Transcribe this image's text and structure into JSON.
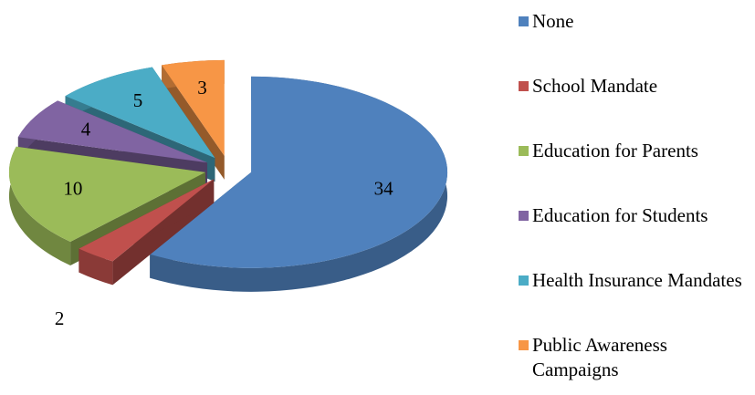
{
  "chart_data": {
    "type": "pie",
    "categories": [
      "None",
      "School Mandate",
      "Education for Parents",
      "Education for Students",
      "Health Insurance Mandates",
      "Public Awareness Campaigns"
    ],
    "values": [
      34,
      2,
      10,
      4,
      5,
      3
    ],
    "colors": [
      "#4f81bd",
      "#c0504d",
      "#9bbb59",
      "#8064a2",
      "#4bacc6",
      "#f79646"
    ]
  }
}
